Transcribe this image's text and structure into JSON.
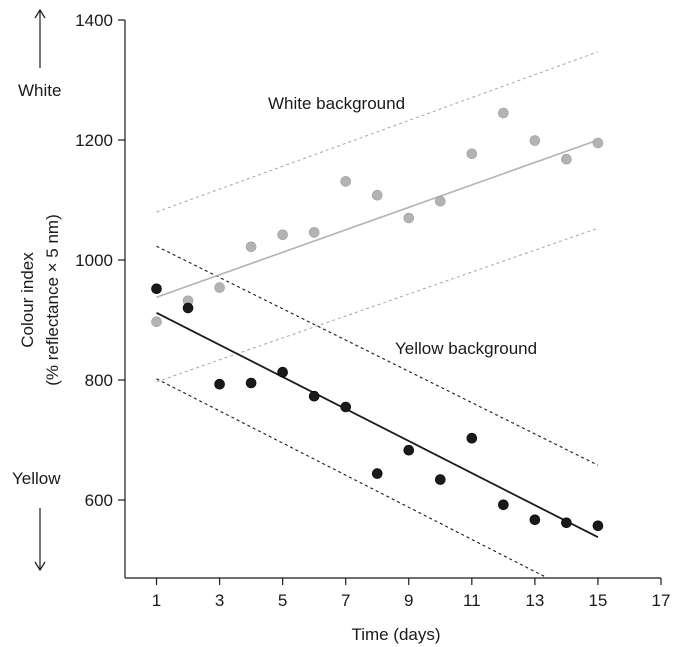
{
  "chart_data": {
    "type": "scatter",
    "xlabel": "Time (days)",
    "ylabel": "Colour index",
    "ylabel_sub": "(% reflectance × 5 nm)",
    "xlim": [
      0,
      17
    ],
    "ylim": [
      470,
      1400
    ],
    "xticks": [
      1,
      3,
      5,
      7,
      9,
      11,
      13,
      15,
      17
    ],
    "yticks": [
      600,
      800,
      1000,
      1200,
      1400
    ],
    "grid": false,
    "annotations": {
      "white_top": "White",
      "yellow_bottom": "Yellow",
      "white_series_label": "White background",
      "yellow_series_label": "Yellow background"
    },
    "series": [
      {
        "name": "White background",
        "color": "#b3b3b3",
        "points": [
          [
            1,
            897
          ],
          [
            2,
            932
          ],
          [
            3,
            954
          ],
          [
            4,
            1022
          ],
          [
            5,
            1042
          ],
          [
            6,
            1046
          ],
          [
            7,
            1131
          ],
          [
            8,
            1108
          ],
          [
            9,
            1070
          ],
          [
            10,
            1098
          ],
          [
            11,
            1177
          ],
          [
            12,
            1245
          ],
          [
            13,
            1199
          ],
          [
            14,
            1168
          ],
          [
            15,
            1195
          ]
        ],
        "fit": [
          [
            1,
            938
          ],
          [
            15,
            1200
          ]
        ],
        "bounds": [
          [
            [
              1,
              1080
            ],
            [
              15,
              1347
            ]
          ],
          [
            [
              1,
              797
            ],
            [
              15,
              1053
            ]
          ]
        ]
      },
      {
        "name": "Yellow background",
        "color": "#1a1a1a",
        "points": [
          [
            1,
            952
          ],
          [
            2,
            920
          ],
          [
            3,
            793
          ],
          [
            4,
            795
          ],
          [
            5,
            813
          ],
          [
            6,
            773
          ],
          [
            7,
            755
          ],
          [
            8,
            644
          ],
          [
            9,
            683
          ],
          [
            10,
            634
          ],
          [
            11,
            703
          ],
          [
            12,
            592
          ],
          [
            13,
            567
          ],
          [
            14,
            562
          ],
          [
            15,
            557
          ]
        ],
        "fit": [
          [
            1,
            912
          ],
          [
            15,
            538
          ]
        ],
        "bounds": [
          [
            [
              1,
              1023
            ],
            [
              15,
              658
            ]
          ],
          [
            [
              1,
              802
            ],
            [
              13.4,
              470
            ]
          ]
        ]
      }
    ]
  }
}
